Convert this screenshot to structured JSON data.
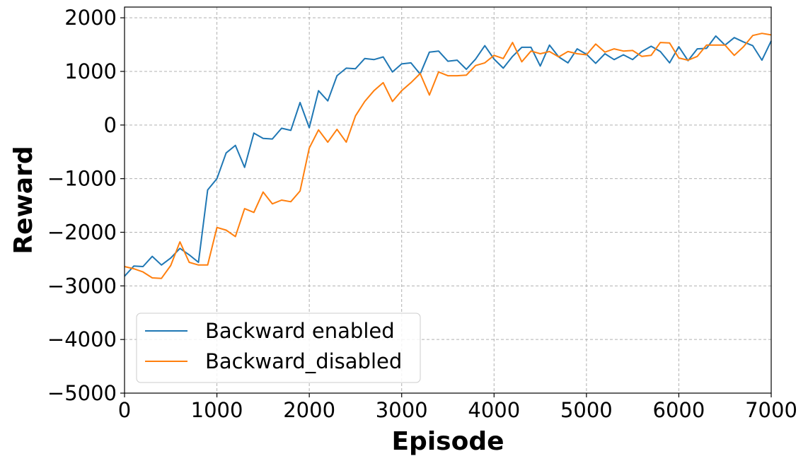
{
  "chart_data": {
    "type": "line",
    "title": "",
    "xlabel": "Episode",
    "ylabel": "Reward",
    "xlim": [
      0,
      7000
    ],
    "ylim": [
      -5000,
      2200
    ],
    "xticks": [
      0,
      1000,
      2000,
      3000,
      4000,
      5000,
      6000,
      7000
    ],
    "yticks": [
      -5000,
      -4000,
      -3000,
      -2000,
      -1000,
      0,
      1000,
      2000
    ],
    "xtick_labels": [
      "0",
      "1000",
      "2000",
      "3000",
      "4000",
      "5000",
      "6000",
      "7000"
    ],
    "ytick_labels": [
      "−5000",
      "−4000",
      "−3000",
      "−2000",
      "−1000",
      "0",
      "1000",
      "2000"
    ],
    "grid": true,
    "legend": "lower-left",
    "x": [
      0,
      100,
      200,
      300,
      400,
      500,
      600,
      700,
      800,
      900,
      1000,
      1100,
      1200,
      1300,
      1400,
      1500,
      1600,
      1700,
      1800,
      1900,
      2000,
      2100,
      2200,
      2300,
      2400,
      2500,
      2600,
      2700,
      2800,
      2900,
      3000,
      3100,
      3200,
      3300,
      3400,
      3500,
      3600,
      3700,
      3800,
      3900,
      4000,
      4100,
      4200,
      4300,
      4400,
      4500,
      4600,
      4700,
      4800,
      4900,
      5000,
      5100,
      5200,
      5300,
      5400,
      5500,
      5600,
      5700,
      5800,
      5900,
      6000,
      6100,
      6200,
      6300,
      6400,
      6500,
      6600,
      6700,
      6800,
      6900,
      7000
    ],
    "series": [
      {
        "name": "Backward enabled",
        "color": "#1f77b4",
        "values": [
          -2820,
          -2630,
          -2640,
          -2450,
          -2610,
          -2480,
          -2300,
          -2420,
          -2560,
          -1210,
          -1000,
          -520,
          -380,
          -790,
          -150,
          -250,
          -260,
          -60,
          -100,
          420,
          -50,
          640,
          450,
          920,
          1060,
          1050,
          1240,
          1220,
          1270,
          990,
          1140,
          1160,
          950,
          1360,
          1380,
          1190,
          1210,
          1040,
          1230,
          1480,
          1230,
          1060,
          1280,
          1450,
          1450,
          1100,
          1490,
          1270,
          1160,
          1420,
          1320,
          1150,
          1330,
          1220,
          1310,
          1220,
          1370,
          1470,
          1370,
          1160,
          1460,
          1200,
          1420,
          1430,
          1660,
          1490,
          1630,
          1550,
          1480,
          1210,
          1570
        ]
      },
      {
        "name": "Backward_disabled",
        "color": "#ff7f0e",
        "values": [
          -2640,
          -2680,
          -2740,
          -2850,
          -2860,
          -2620,
          -2180,
          -2560,
          -2610,
          -2610,
          -1910,
          -1960,
          -2080,
          -1560,
          -1630,
          -1250,
          -1470,
          -1400,
          -1430,
          -1230,
          -430,
          -90,
          -320,
          -80,
          -320,
          170,
          440,
          640,
          790,
          440,
          640,
          790,
          960,
          560,
          990,
          920,
          920,
          930,
          1110,
          1160,
          1300,
          1240,
          1540,
          1180,
          1380,
          1330,
          1370,
          1270,
          1370,
          1330,
          1310,
          1510,
          1360,
          1420,
          1380,
          1390,
          1280,
          1300,
          1540,
          1530,
          1250,
          1210,
          1280,
          1490,
          1490,
          1490,
          1300,
          1460,
          1670,
          1710,
          1680
        ]
      }
    ]
  }
}
